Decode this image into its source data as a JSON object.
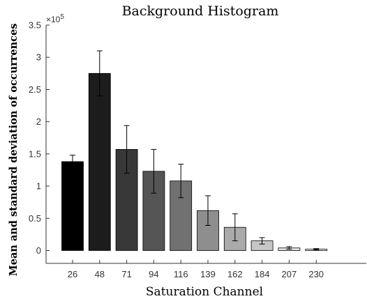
{
  "chart_data": {
    "type": "bar",
    "title": "Background Histogram",
    "xlabel": "Saturation Channel",
    "ylabel": "Mean and standard deviation of occurrences",
    "y_multiplier": "×10",
    "y_multiplier_exp": "5",
    "y_scale": 100000,
    "ylim": [
      -0.2,
      3.5
    ],
    "yticks": [
      0,
      0.5,
      1,
      1.5,
      2,
      2.5,
      3,
      3.5
    ],
    "ytick_labels": [
      "0",
      "0.5",
      "1",
      "1.5",
      "2",
      "2.5",
      "3",
      "3.5"
    ],
    "categories": [
      "26",
      "48",
      "71",
      "94",
      "116",
      "139",
      "162",
      "184",
      "207",
      "230"
    ],
    "values": [
      1.38,
      2.75,
      1.57,
      1.23,
      1.08,
      0.62,
      0.36,
      0.15,
      0.04,
      0.02
    ],
    "errors": [
      0.1,
      0.35,
      0.37,
      0.34,
      0.26,
      0.23,
      0.21,
      0.05,
      0.02,
      0.01
    ],
    "bar_colors": [
      "#000000",
      "#1c1c1c",
      "#383838",
      "#555555",
      "#717171",
      "#8e8e8e",
      "#aaaaaa",
      "#c6c6c6",
      "#e3e3e3",
      "#f5f5f5"
    ],
    "grid": false,
    "legend": "none"
  }
}
